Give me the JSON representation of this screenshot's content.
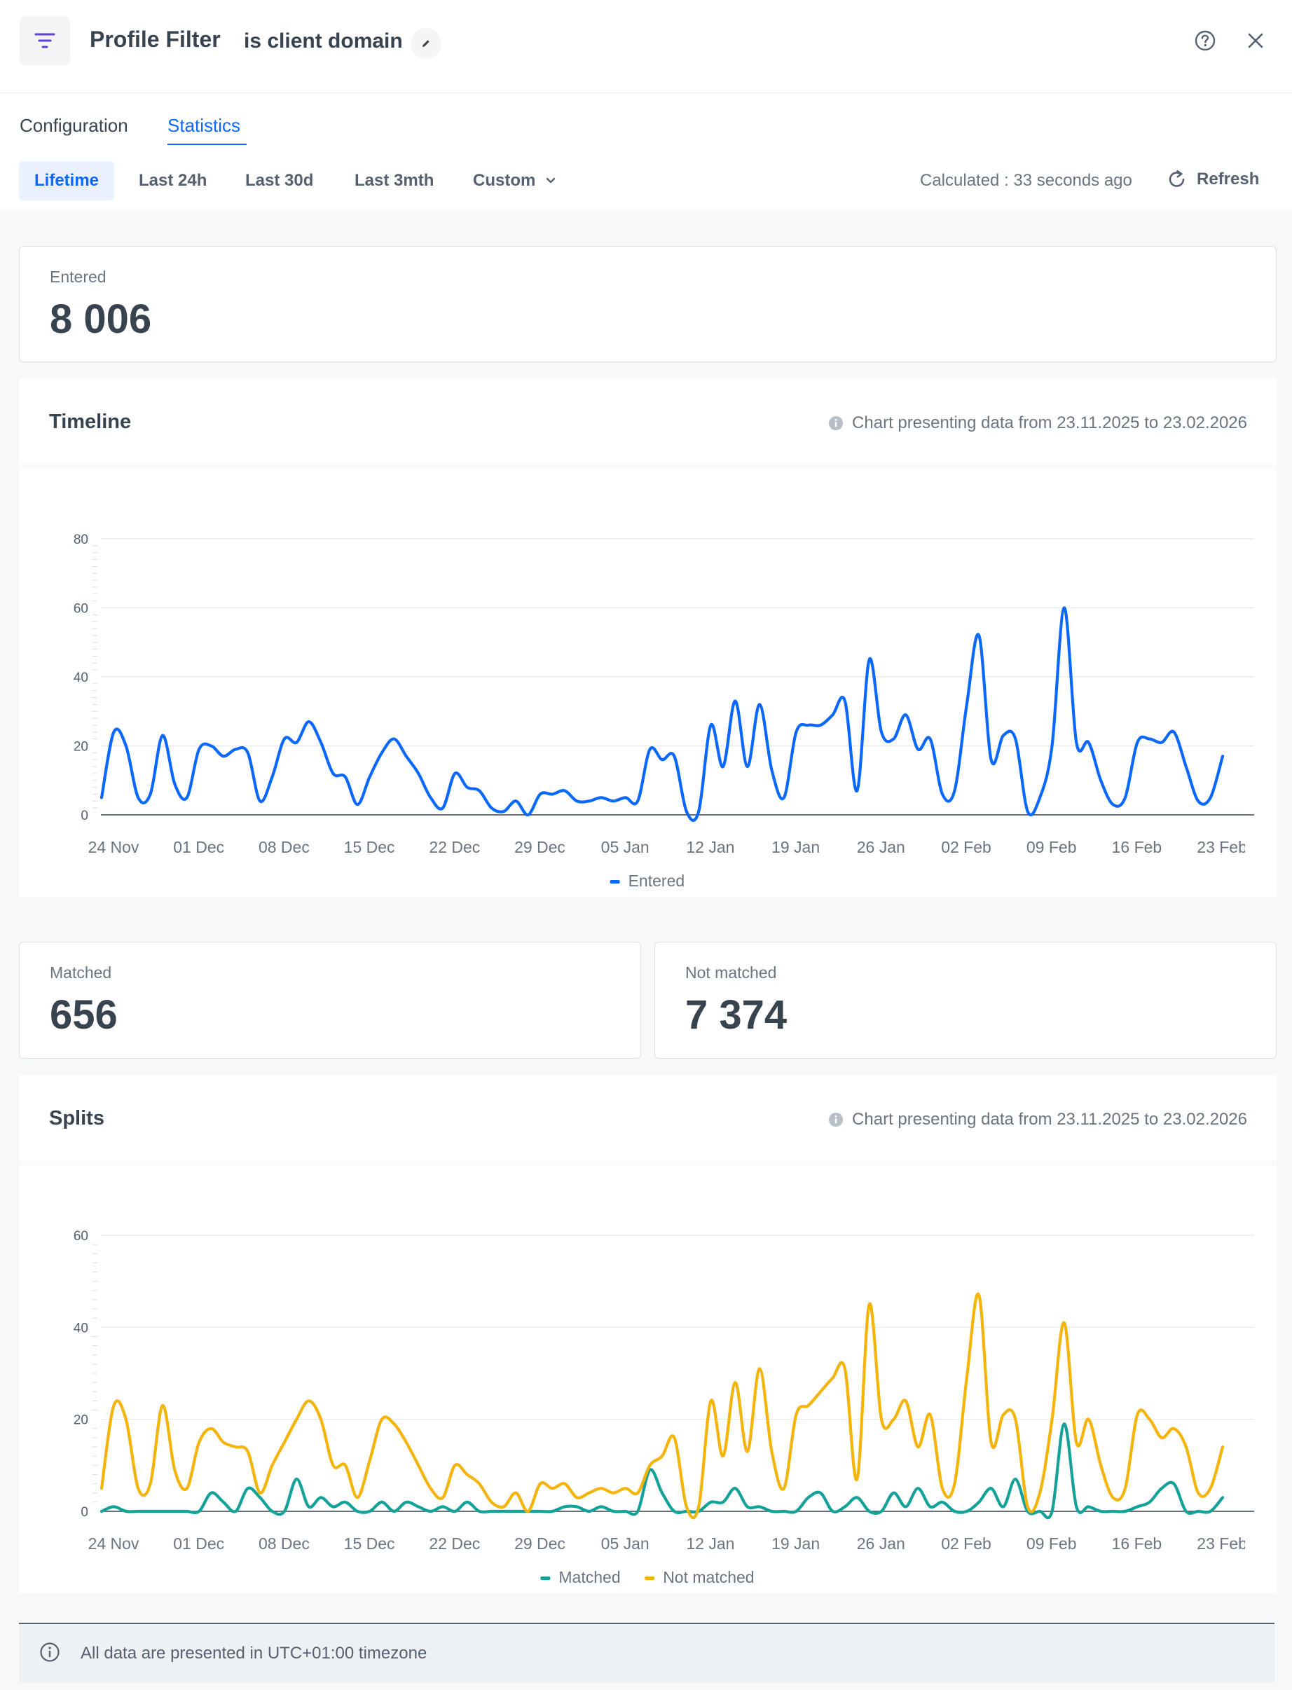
{
  "header": {
    "title": "Profile Filter",
    "subtitle": "is client domain",
    "icon": "filter-icon",
    "help_icon": "help-circle-icon",
    "close_icon": "close-icon",
    "edit_icon": "pencil-icon"
  },
  "tabs": [
    {
      "label": "Configuration",
      "active": false
    },
    {
      "label": "Statistics",
      "active": true
    }
  ],
  "ranges": [
    {
      "label": "Lifetime",
      "active": true
    },
    {
      "label": "Last 24h",
      "active": false
    },
    {
      "label": "Last 30d",
      "active": false
    },
    {
      "label": "Last 3mth",
      "active": false
    },
    {
      "label": "Custom",
      "active": false
    }
  ],
  "calculated": "Calculated : 33 seconds ago",
  "refresh_label": "Refresh",
  "stats": {
    "entered": {
      "label": "Entered",
      "value": "8 006"
    },
    "matched": {
      "label": "Matched",
      "value": "656"
    },
    "not_matched": {
      "label": "Not matched",
      "value": "7 374"
    }
  },
  "timeline": {
    "title": "Timeline",
    "note": "Chart presenting data from 23.11.2025 to 23.02.2026"
  },
  "splits": {
    "title": "Splits",
    "note": "Chart presenting data from 23.11.2025 to 23.02.2026"
  },
  "footer": {
    "text": "All data are presented in UTC+01:00 timezone"
  },
  "colors": {
    "entered": "#0b68ff",
    "matched": "#13a29a",
    "not_matched": "#f5b40a",
    "accent": "#0b68ff"
  },
  "chart_data": [
    {
      "type": "line",
      "title": "",
      "x_tick_labels": [
        "24 Nov",
        "01 Dec",
        "08 Dec",
        "15 Dec",
        "22 Dec",
        "29 Dec",
        "05 Jan",
        "12 Jan",
        "19 Jan",
        "26 Jan",
        "02 Feb",
        "09 Feb",
        "16 Feb",
        "23 Feb"
      ],
      "ylim": [
        0,
        80
      ],
      "y_ticks": [
        0,
        20,
        40,
        60,
        80
      ],
      "grid": true,
      "legend": "bottom-center",
      "series": [
        {
          "name": "Entered",
          "color": "#0b68ff",
          "values": [
            5,
            24,
            20,
            5,
            6,
            23,
            9,
            5,
            19,
            20,
            17,
            19,
            18,
            4,
            11,
            22,
            21,
            27,
            21,
            12,
            11,
            3,
            11,
            18,
            22,
            17,
            12,
            5,
            2,
            12,
            8,
            7,
            2,
            1,
            4,
            0,
            6,
            6,
            7,
            4,
            4,
            5,
            4,
            5,
            4,
            19,
            16,
            17,
            1,
            1,
            26,
            14,
            33,
            14,
            32,
            13,
            5,
            24,
            26,
            26,
            29,
            33,
            7,
            45,
            24,
            22,
            29,
            19,
            22,
            6,
            7,
            32,
            52,
            16,
            23,
            22,
            1,
            5,
            20,
            60,
            21,
            21,
            10,
            3,
            5,
            21,
            22,
            21,
            24,
            14,
            4,
            5,
            17
          ]
        }
      ]
    },
    {
      "type": "line",
      "title": "",
      "x_tick_labels": [
        "24 Nov",
        "01 Dec",
        "08 Dec",
        "15 Dec",
        "22 Dec",
        "29 Dec",
        "05 Jan",
        "12 Jan",
        "19 Jan",
        "26 Jan",
        "02 Feb",
        "09 Feb",
        "16 Feb",
        "23 Feb"
      ],
      "ylim": [
        0,
        60
      ],
      "y_ticks": [
        0,
        20,
        40,
        60
      ],
      "grid": true,
      "legend": "bottom-center",
      "series": [
        {
          "name": "Matched",
          "color": "#13a29a",
          "values": [
            0,
            1,
            0,
            0,
            0,
            0,
            0,
            0,
            0,
            4,
            2,
            0,
            5,
            3,
            0,
            0,
            7,
            1,
            3,
            1,
            2,
            0,
            0,
            2,
            0,
            2,
            1,
            0,
            1,
            0,
            2,
            0,
            0,
            0,
            0,
            0,
            0,
            0,
            1,
            1,
            0,
            1,
            0,
            0,
            0,
            9,
            4,
            0,
            0,
            0,
            2,
            2,
            5,
            1,
            1,
            0,
            0,
            0,
            3,
            4,
            0,
            1,
            3,
            0,
            0,
            4,
            1,
            5,
            1,
            2,
            0,
            0,
            2,
            5,
            1,
            7,
            0,
            0,
            0,
            19,
            1,
            1,
            0,
            0,
            0,
            1,
            2,
            5,
            6,
            0,
            0,
            0,
            3
          ]
        },
        {
          "name": "Not matched",
          "color": "#f5b40a",
          "values": [
            5,
            23,
            20,
            5,
            6,
            23,
            9,
            5,
            15,
            18,
            15,
            14,
            13,
            4,
            10,
            15,
            20,
            24,
            20,
            10,
            10,
            3,
            11,
            20,
            19,
            15,
            10,
            5,
            3,
            10,
            8,
            6,
            2,
            1,
            4,
            0,
            6,
            5,
            6,
            3,
            4,
            5,
            4,
            5,
            4,
            10,
            12,
            16,
            1,
            1,
            24,
            12,
            28,
            13,
            31,
            13,
            5,
            21,
            23,
            26,
            29,
            31,
            7,
            45,
            20,
            20,
            24,
            14,
            21,
            5,
            6,
            29,
            47,
            15,
            21,
            20,
            1,
            4,
            20,
            41,
            15,
            20,
            10,
            3,
            5,
            21,
            20,
            16,
            18,
            14,
            4,
            5,
            14
          ]
        }
      ]
    }
  ]
}
